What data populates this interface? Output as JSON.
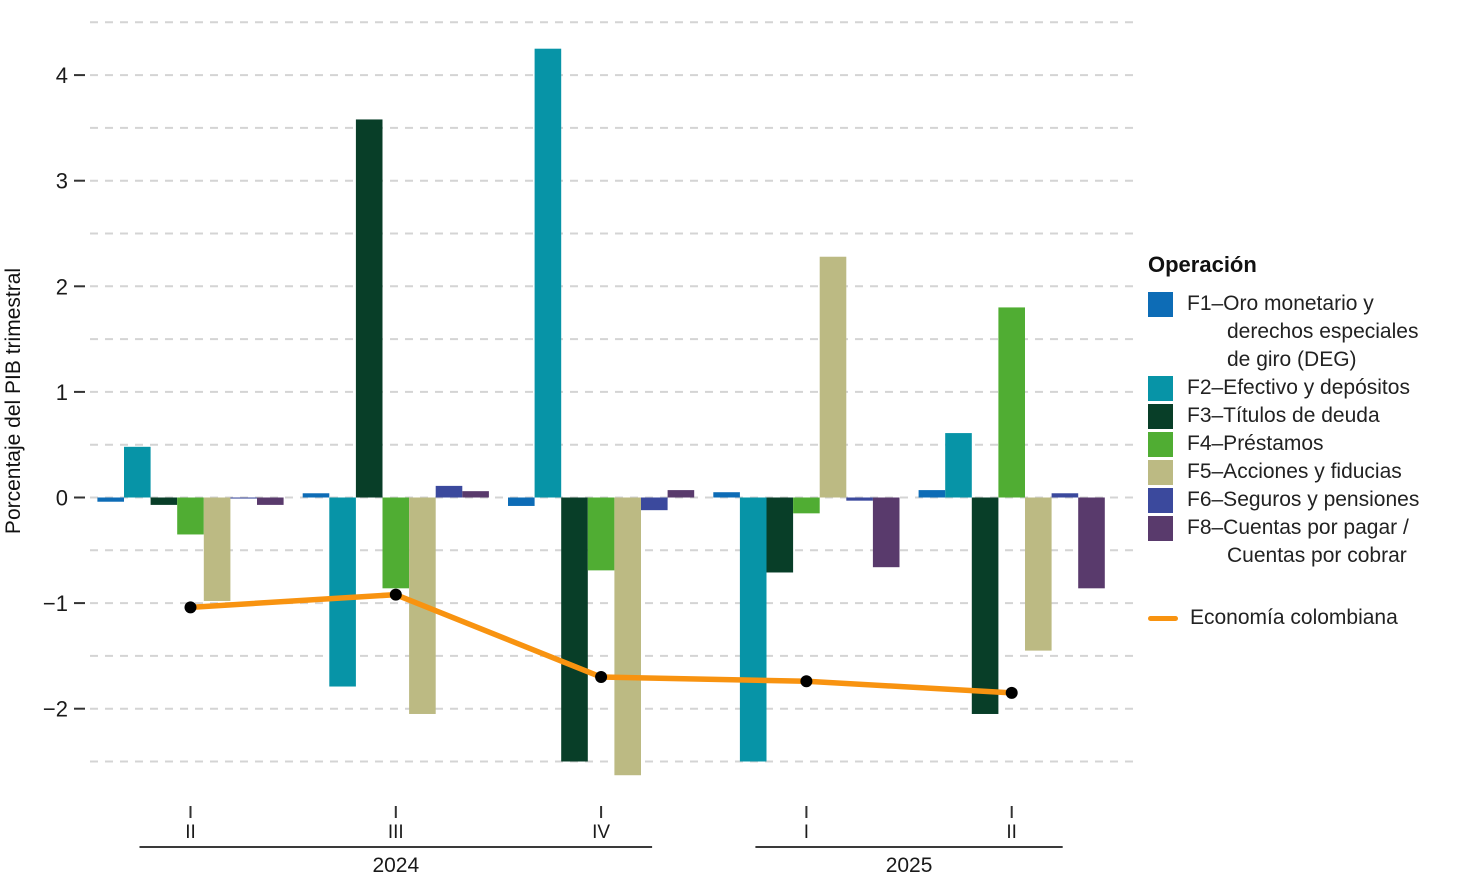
{
  "y_axis": {
    "title": "Porcentaje del PIB trimestral",
    "tick_values": [
      4,
      3,
      2,
      1,
      0,
      -1,
      -2
    ],
    "tick_labels": [
      "4",
      "3",
      "2",
      "1",
      "0",
      "−1",
      "−2"
    ]
  },
  "x_axis": {
    "quarters": [
      "II",
      "III",
      "IV",
      "I",
      "II"
    ],
    "year_groups": [
      {
        "label": "2024",
        "quarter_indexes": [
          0,
          1,
          2
        ]
      },
      {
        "label": "2025",
        "quarter_indexes": [
          3,
          4
        ]
      }
    ]
  },
  "legend": {
    "title": "Operación",
    "items": [
      {
        "label": "F1–Oro monetario y\nderechos especiales\nde giro (DEG)",
        "color": "#0d6cb6"
      },
      {
        "label": "F2–Efectivo y depósitos",
        "color": "#0794a7"
      },
      {
        "label": "F3–Títulos de deuda",
        "color": "#083e28"
      },
      {
        "label": "F4–Préstamos",
        "color": "#50ad33"
      },
      {
        "label": "F5–Acciones y fiducias",
        "color": "#bcba83"
      },
      {
        "label": "F6–Seguros y pensiones",
        "color": "#3b499d"
      },
      {
        "label": "F8–Cuentas por pagar /\nCuentas por cobrar",
        "color": "#593a6c"
      }
    ],
    "line_item": {
      "label": "Economía colombiana",
      "color": "#f89310"
    }
  },
  "chart_data": {
    "type": "bar",
    "categories": [
      "2024-II",
      "2024-III",
      "2024-IV",
      "2025-I",
      "2025-II"
    ],
    "series": [
      {
        "name": "F1–Oro monetario y derechos especiales de giro (DEG)",
        "color": "#0d6cb6",
        "values": [
          -0.04,
          0.04,
          -0.08,
          0.05,
          0.07
        ]
      },
      {
        "name": "F2–Efectivo y depósitos",
        "color": "#0794a7",
        "values": [
          0.48,
          -1.79,
          4.25,
          -2.5,
          0.61
        ]
      },
      {
        "name": "F3–Títulos de deuda",
        "color": "#083e28",
        "values": [
          -0.07,
          3.58,
          -2.5,
          -0.71,
          -2.05
        ]
      },
      {
        "name": "F4–Préstamos",
        "color": "#50ad33",
        "values": [
          -0.35,
          -0.86,
          -0.69,
          -0.15,
          1.8
        ]
      },
      {
        "name": "F5–Acciones y fiducias",
        "color": "#bcba83",
        "values": [
          -0.98,
          -2.05,
          -2.63,
          2.28,
          -1.45
        ]
      },
      {
        "name": "F6–Seguros y pensiones",
        "color": "#3b499d",
        "values": [
          -0.01,
          0.11,
          -0.12,
          -0.03,
          0.04
        ]
      },
      {
        "name": "F8–Cuentas por pagar / Cuentas por cobrar",
        "color": "#593a6c",
        "values": [
          -0.07,
          0.06,
          0.07,
          -0.66,
          -0.86
        ]
      }
    ],
    "line_series": {
      "name": "Economía colombiana",
      "color": "#f89310",
      "point_color": "#000000",
      "values": [
        -1.04,
        -0.92,
        -1.7,
        -1.74,
        -1.85
      ]
    },
    "title": "",
    "xlabel": "",
    "ylabel": "Porcentaje del PIB trimestral",
    "ylim": [
      -2.8,
      4.6
    ],
    "grid": "horizontal dashed every 0.5",
    "gridline_min": -2.5,
    "gridline_max": 4.5,
    "legend_position": "right"
  }
}
